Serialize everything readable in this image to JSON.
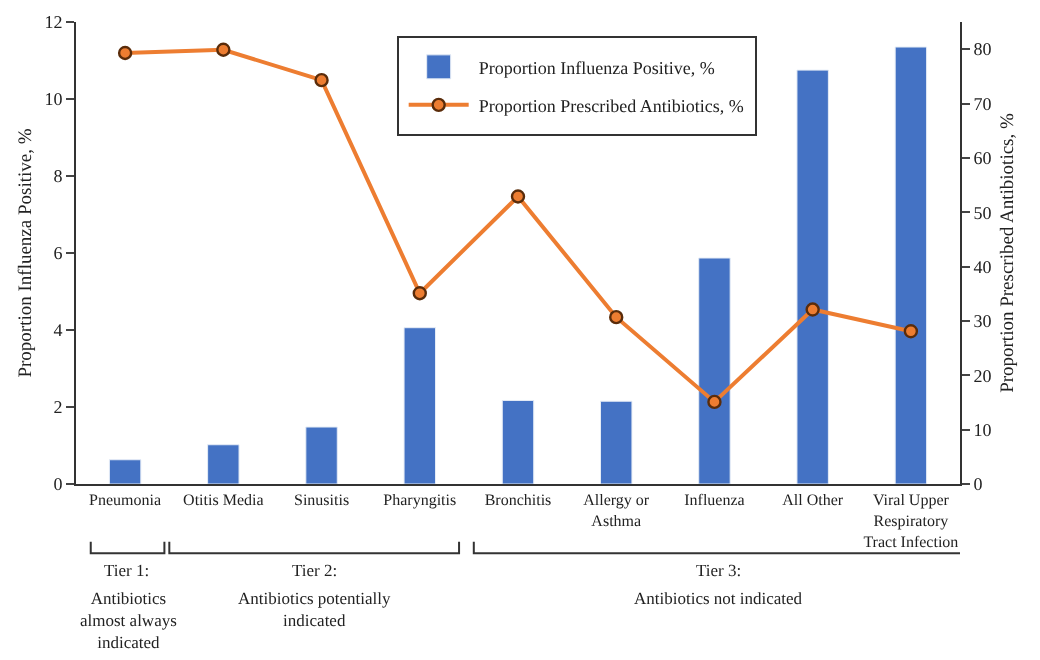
{
  "chart_data": {
    "type": "bar",
    "categories": [
      "Pneumonia",
      "Otitis Media",
      "Sinusitis",
      "Pharyngitis",
      "Bronchitis",
      "Allergy or\nAsthma",
      "Influenza",
      "All Other",
      "Viral Upper\nRespiratory\nTract Infection"
    ],
    "series": [
      {
        "name": "Proportion Influenza Positive, %",
        "color": "#4472c4",
        "values": [
          0.63,
          1.02,
          1.48,
          4.06,
          2.17,
          2.15,
          5.87,
          10.75,
          11.35
        ]
      },
      {
        "name": "Proportion Prescribed Antibiotics, %",
        "type": "line",
        "axis": "y2",
        "color": "#ed7d31",
        "values": [
          79.3,
          79.9,
          74.3,
          35.1,
          52.9,
          30.7,
          15.1,
          32.1,
          28.1
        ]
      }
    ],
    "ylabel": "Proportion Influenza Positive, %",
    "y2label": "Proportion Prescribed Antibiotics, %",
    "ylim": [
      0,
      12
    ],
    "yticks": [
      0,
      2,
      4,
      6,
      8,
      10,
      12
    ],
    "y2lim": [
      0,
      85
    ],
    "y2ticks": [
      0,
      10,
      20,
      30,
      40,
      50,
      60,
      70,
      80
    ],
    "annotations": [
      "Tier 1:",
      "Antibiotics\nalmost always\nindicated",
      "Tier 2:",
      "Antibiotics potentially\nindicated",
      "Tier 3:",
      "Antibiotics not indicated"
    ],
    "legend": "top right",
    "marker": "circle",
    "line_style": "solid"
  }
}
